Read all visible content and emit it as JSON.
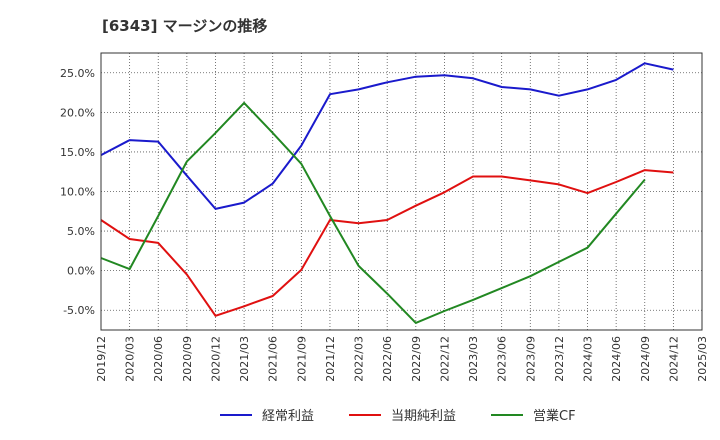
{
  "chart_data": {
    "type": "line",
    "title": "[6343]  マージンの推移",
    "xlabel": "",
    "ylabel": "",
    "ylim": [
      -7.5,
      27.5
    ],
    "yticks": [
      -5,
      0,
      5,
      10,
      15,
      20,
      25
    ],
    "ytick_labels": [
      "-5.0%",
      "0.0%",
      "5.0%",
      "10.0%",
      "15.0%",
      "20.0%",
      "25.0%"
    ],
    "categories": [
      "2019/12",
      "2020/03",
      "2020/06",
      "2020/09",
      "2020/12",
      "2021/03",
      "2021/06",
      "2021/09",
      "2021/12",
      "2022/03",
      "2022/06",
      "2022/09",
      "2022/12",
      "2023/03",
      "2023/06",
      "2023/09",
      "2023/12",
      "2024/03",
      "2024/06",
      "2024/09",
      "2024/12",
      "2025/03"
    ],
    "grid": true,
    "legend_position": "bottom",
    "series": [
      {
        "name": "経常利益",
        "color": "#1a1acc",
        "values": [
          14.6,
          16.5,
          16.3,
          12.0,
          7.8,
          8.6,
          11.0,
          15.8,
          22.3,
          22.9,
          23.8,
          24.5,
          24.7,
          24.3,
          23.2,
          22.9,
          22.1,
          22.9,
          24.1,
          26.2,
          25.4,
          null
        ]
      },
      {
        "name": "当期純利益",
        "color": "#e01010",
        "values": [
          6.4,
          4.0,
          3.5,
          -0.5,
          -5.7,
          -4.5,
          -3.2,
          0.1,
          6.4,
          6.0,
          6.4,
          8.2,
          9.9,
          11.9,
          11.9,
          11.4,
          10.9,
          9.8,
          11.2,
          12.7,
          12.4,
          null
        ]
      },
      {
        "name": "営業CF",
        "color": "#228822",
        "values": [
          1.6,
          0.2,
          6.9,
          13.8,
          17.4,
          21.2,
          17.4,
          13.5,
          6.9,
          0.6,
          -2.9,
          -6.6,
          -5.1,
          -3.7,
          -2.2,
          -0.7,
          1.1,
          2.9,
          7.2,
          11.5,
          null,
          null
        ]
      }
    ]
  }
}
